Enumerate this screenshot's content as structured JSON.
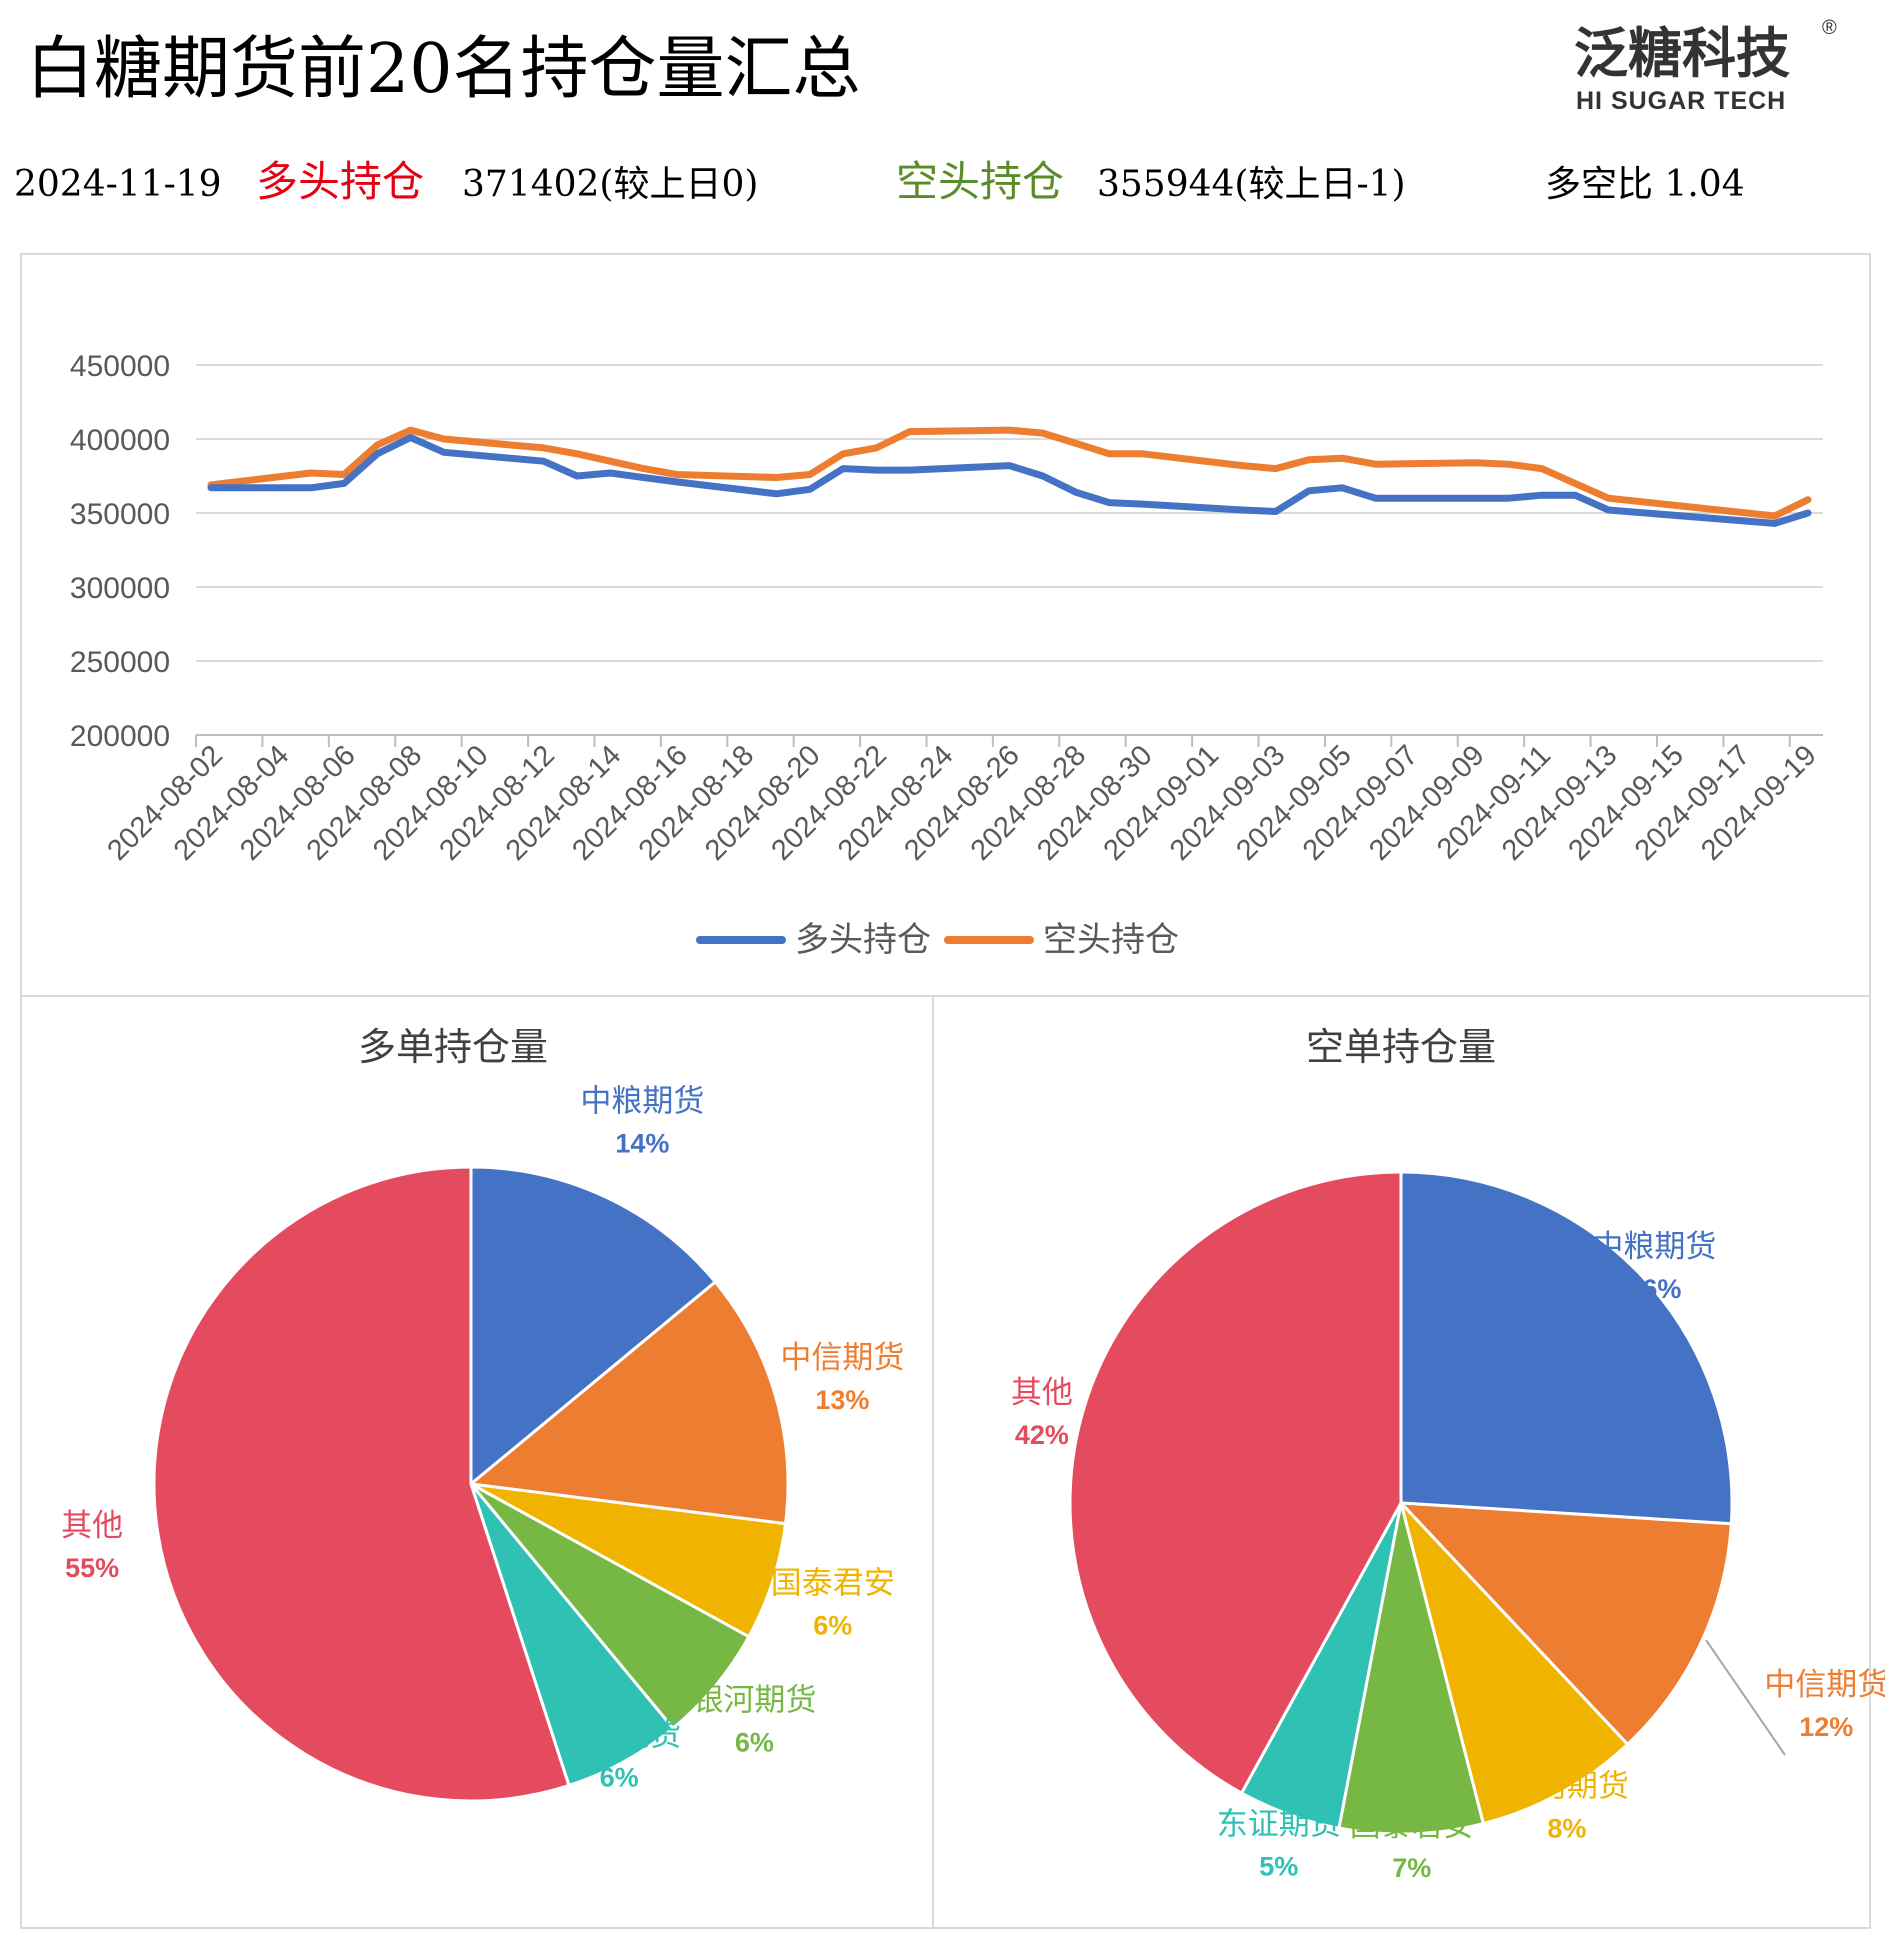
{
  "header": {
    "title": "白糖期货前20名持仓量汇总",
    "logo_cn": "泛糖科技",
    "logo_en": "HI SUGAR TECH",
    "logo_mark": "®",
    "date": "2024-11-19",
    "long_label": "多头持仓",
    "long_value": "371402(较上日0)",
    "short_label": "空头持仓",
    "short_value": "355944(较上日-1)",
    "ratio_label": "多空比 1.04",
    "colors": {
      "long": "#E60012",
      "short": "#5B8C2A"
    }
  },
  "chart_data": [
    {
      "type": "line",
      "ylim": [
        200000,
        450000
      ],
      "yticks": [
        "450000",
        "400000",
        "350000",
        "300000",
        "250000",
        "200000"
      ],
      "ytick_values": [
        450000,
        400000,
        350000,
        300000,
        250000,
        200000
      ],
      "grid": true,
      "legend_position": "bottom",
      "xticks": [
        "2024-08-02",
        "2024-08-04",
        "2024-08-06",
        "2024-08-08",
        "2024-08-10",
        "2024-08-12",
        "2024-08-14",
        "2024-08-16",
        "2024-08-18",
        "2024-08-20",
        "2024-08-22",
        "2024-08-24",
        "2024-08-26",
        "2024-08-28",
        "2024-08-30",
        "2024-09-01",
        "2024-09-03",
        "2024-09-05",
        "2024-09-07",
        "2024-09-09",
        "2024-09-11",
        "2024-09-13",
        "2024-09-15",
        "2024-09-17",
        "2024-09-19"
      ],
      "x": [
        "2024-08-02",
        "2024-08-05",
        "2024-08-06",
        "2024-08-07",
        "2024-08-08",
        "2024-08-09",
        "2024-08-12",
        "2024-08-13",
        "2024-08-14",
        "2024-08-15",
        "2024-08-16",
        "2024-08-19",
        "2024-08-20",
        "2024-08-21",
        "2024-08-22",
        "2024-08-23",
        "2024-08-26",
        "2024-08-27",
        "2024-08-28",
        "2024-08-29",
        "2024-08-30",
        "2024-09-02",
        "2024-09-03",
        "2024-09-04",
        "2024-09-05",
        "2024-09-06",
        "2024-09-09",
        "2024-09-10",
        "2024-09-11",
        "2024-09-12",
        "2024-09-13",
        "2024-09-18",
        "2024-09-19"
      ],
      "series": [
        {
          "name": "多头持仓",
          "color": "#4472C4",
          "values": [
            367000,
            367000,
            370000,
            390000,
            401000,
            391000,
            385000,
            375000,
            377000,
            374000,
            371000,
            363000,
            366000,
            380000,
            379000,
            379000,
            382000,
            375000,
            364000,
            357000,
            356000,
            352000,
            351000,
            365000,
            367000,
            360000,
            360000,
            360000,
            362000,
            362000,
            352000,
            343000,
            350000
          ]
        },
        {
          "name": "空头持仓",
          "color": "#ED7D31",
          "values": [
            369000,
            377000,
            376000,
            396000,
            406000,
            400000,
            394000,
            390000,
            385000,
            380000,
            376000,
            374000,
            376000,
            390000,
            394000,
            405000,
            406000,
            404000,
            397000,
            390000,
            390000,
            382000,
            380000,
            386000,
            387000,
            383000,
            384000,
            383000,
            380000,
            370000,
            360000,
            348000,
            359000
          ]
        }
      ]
    },
    {
      "type": "pie",
      "title": "多单持仓量",
      "slices": [
        {
          "name": "中粮期货",
          "value": 14,
          "label": "14%",
          "color": "#4472C4"
        },
        {
          "name": "中信期货",
          "value": 13,
          "label": "13%",
          "color": "#ED7D31"
        },
        {
          "name": "国泰君安",
          "value": 6,
          "label": "6%",
          "color": "#F0B400"
        },
        {
          "name": "银河期货",
          "value": 6,
          "label": "6%",
          "color": "#76B843"
        },
        {
          "name": "海通期货",
          "value": 6,
          "label": "6%",
          "color": "#2EC1B4"
        },
        {
          "name": "其他",
          "value": 55,
          "label": "55%",
          "color": "#E54B5E"
        }
      ]
    },
    {
      "type": "pie",
      "title": "空单持仓量",
      "slices": [
        {
          "name": "中粮期货",
          "value": 26,
          "label": "26%",
          "color": "#4472C4"
        },
        {
          "name": "中信期货",
          "value": 12,
          "label": "12%",
          "color": "#ED7D31"
        },
        {
          "name": "银河期货",
          "value": 8,
          "label": "8%",
          "color": "#F0B400"
        },
        {
          "name": "国泰君安",
          "value": 7,
          "label": "7%",
          "color": "#76B843"
        },
        {
          "name": "东证期货",
          "value": 5,
          "label": "5%",
          "color": "#2EC1B4"
        },
        {
          "name": "其他",
          "value": 42,
          "label": "42%",
          "color": "#E54B5E"
        }
      ]
    }
  ]
}
